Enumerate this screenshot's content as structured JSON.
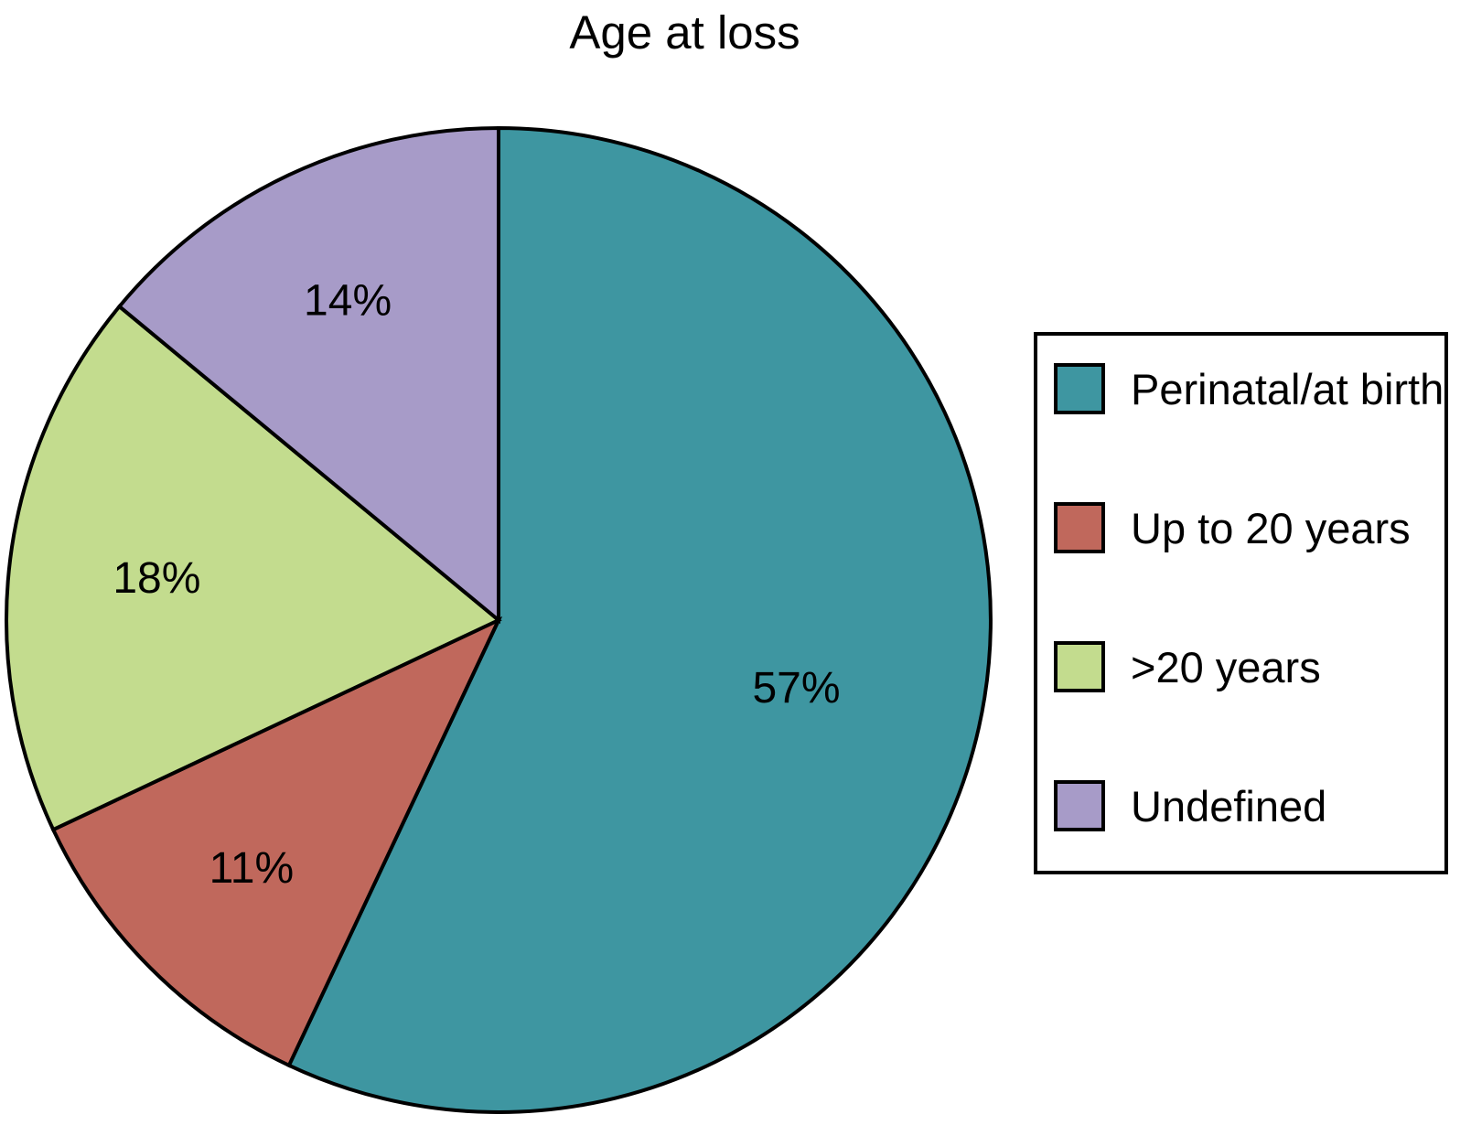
{
  "chart_data": {
    "type": "pie",
    "title": "Age at loss",
    "categories": [
      "Perinatal/at birth",
      "Up to 20 years",
      ">20 years",
      "Undefined"
    ],
    "values": [
      57,
      11,
      18,
      14
    ],
    "slice_labels": [
      "57%",
      "11%",
      "18%",
      "14%"
    ],
    "colors": [
      "#3E96A1",
      "#C0685C",
      "#C3DC8E",
      "#A79BC8"
    ],
    "outline_color": "#000000",
    "start_angle_deg": 0,
    "direction": "clockwise",
    "legend_position": "right",
    "label_radius_fractions": [
      0.62,
      0.71,
      0.7,
      0.72
    ]
  },
  "legend": {
    "items": [
      {
        "label": "Perinatal/at birth",
        "color": "#3E96A1"
      },
      {
        "label": "Up to 20 years",
        "color": "#C0685C"
      },
      {
        "label": ">20 years",
        "color": "#C3DC8E"
      },
      {
        "label": "Undefined",
        "color": "#A79BC8"
      }
    ]
  }
}
